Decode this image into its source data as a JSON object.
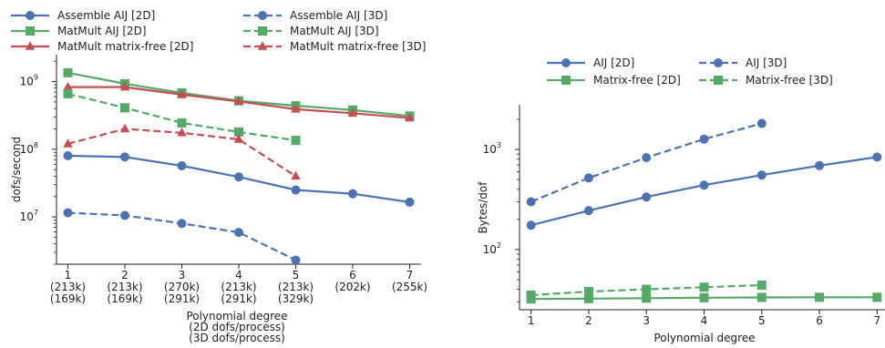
{
  "colors": {
    "blue": "#4c72b0",
    "green": "#55a868",
    "red": "#c44e52",
    "axis": "#222222"
  },
  "chart_data": [
    {
      "type": "line",
      "ylabel": "dofs/second",
      "xlabel_lines": [
        "Polynomial degree",
        "(2D dofs/process)",
        "(3D dofs/process)"
      ],
      "y_scale": "log",
      "ylim": [
        2000000.0,
        2500000000.0
      ],
      "xlim": [
        0.8,
        7.2
      ],
      "y_ticks": [
        {
          "value": 10000000.0,
          "label": "10",
          "exp": "7"
        },
        {
          "value": 100000000.0,
          "label": "10",
          "exp": "8"
        },
        {
          "value": 1000000000.0,
          "label": "10",
          "exp": "9"
        }
      ],
      "x_ticks": [
        {
          "value": 1,
          "lines": [
            "1",
            "(213k)",
            "(169k)"
          ]
        },
        {
          "value": 2,
          "lines": [
            "2",
            "(213k)",
            "(169k)"
          ]
        },
        {
          "value": 3,
          "lines": [
            "3",
            "(270k)",
            "(291k)"
          ]
        },
        {
          "value": 4,
          "lines": [
            "4",
            "(213k)",
            "(291k)"
          ]
        },
        {
          "value": 5,
          "lines": [
            "5",
            "(213k)",
            "(329k)"
          ]
        },
        {
          "value": 6,
          "lines": [
            "6",
            "(202k)"
          ]
        },
        {
          "value": 7,
          "lines": [
            "7",
            "(255k)"
          ]
        }
      ],
      "legend_placement": "top, two columns",
      "series": [
        {
          "name": "Assemble AIJ [2D]",
          "color": "blue",
          "marker": "circle",
          "dash": false,
          "x": [
            1,
            2,
            3,
            4,
            5,
            6,
            7
          ],
          "y": [
            80000000.0,
            77000000.0,
            57000000.0,
            39000000.0,
            25000000.0,
            22000000.0,
            16500000.0
          ]
        },
        {
          "name": "MatMult AIJ [2D]",
          "color": "green",
          "marker": "square",
          "dash": false,
          "x": [
            1,
            2,
            3,
            4,
            5,
            6,
            7
          ],
          "y": [
            1350000000.0,
            930000000.0,
            680000000.0,
            520000000.0,
            440000000.0,
            380000000.0,
            310000000.0
          ]
        },
        {
          "name": "MatMult matrix-free [2D]",
          "color": "red",
          "marker": "triangle",
          "dash": false,
          "x": [
            1,
            2,
            3,
            4,
            5,
            6,
            7
          ],
          "y": [
            830000000.0,
            830000000.0,
            640000000.0,
            510000000.0,
            390000000.0,
            340000000.0,
            290000000.0
          ]
        },
        {
          "name": "Assemble AIJ [3D]",
          "color": "blue",
          "marker": "circle",
          "dash": true,
          "x": [
            1,
            2,
            3,
            4,
            5
          ],
          "y": [
            11500000.0,
            10500000.0,
            8000000.0,
            5900000.0,
            2300000.0
          ]
        },
        {
          "name": "MatMult AIJ [3D]",
          "color": "green",
          "marker": "square",
          "dash": true,
          "x": [
            1,
            2,
            3,
            4,
            5
          ],
          "y": [
            660000000.0,
            410000000.0,
            245000000.0,
            180000000.0,
            135000000.0
          ]
        },
        {
          "name": "MatMult matrix-free [3D]",
          "color": "red",
          "marker": "triangle",
          "dash": true,
          "x": [
            1,
            2,
            3,
            4,
            5
          ],
          "y": [
            120000000.0,
            200000000.0,
            175000000.0,
            140000000.0,
            40000000.0
          ]
        }
      ]
    },
    {
      "type": "line",
      "ylabel": "Bytes/dof",
      "xlabel_lines": [
        "Polynomial degree"
      ],
      "y_scale": "log",
      "ylim": [
        25,
        2800
      ],
      "xlim": [
        0.8,
        7.2
      ],
      "y_ticks": [
        {
          "value": 100,
          "label": "10",
          "exp": "2"
        },
        {
          "value": 1000,
          "label": "10",
          "exp": "3"
        }
      ],
      "x_ticks": [
        {
          "value": 1,
          "lines": [
            "1"
          ]
        },
        {
          "value": 2,
          "lines": [
            "2"
          ]
        },
        {
          "value": 3,
          "lines": [
            "3"
          ]
        },
        {
          "value": 4,
          "lines": [
            "4"
          ]
        },
        {
          "value": 5,
          "lines": [
            "5"
          ]
        },
        {
          "value": 6,
          "lines": [
            "6"
          ]
        },
        {
          "value": 7,
          "lines": [
            "7"
          ]
        }
      ],
      "legend_placement": "top, two columns",
      "series": [
        {
          "name": "AIJ [2D]",
          "color": "blue",
          "marker": "circle",
          "dash": false,
          "x": [
            1,
            2,
            3,
            4,
            5,
            6,
            7
          ],
          "y": [
            175,
            245,
            335,
            440,
            555,
            690,
            840
          ]
        },
        {
          "name": "Matrix-free [2D]",
          "color": "green",
          "marker": "square",
          "dash": false,
          "x": [
            1,
            2,
            3,
            4,
            5,
            6,
            7
          ],
          "y": [
            32,
            32.3,
            32.6,
            33,
            33.2,
            33.3,
            33.3
          ]
        },
        {
          "name": "AIJ [3D]",
          "color": "blue",
          "marker": "circle",
          "dash": true,
          "x": [
            1,
            2,
            3,
            4,
            5
          ],
          "y": [
            300,
            520,
            830,
            1270,
            1820
          ]
        },
        {
          "name": "Matrix-free [3D]",
          "color": "green",
          "marker": "square",
          "dash": true,
          "x": [
            1,
            2,
            3,
            4,
            5
          ],
          "y": [
            35,
            38,
            40,
            42,
            44
          ]
        }
      ]
    }
  ]
}
